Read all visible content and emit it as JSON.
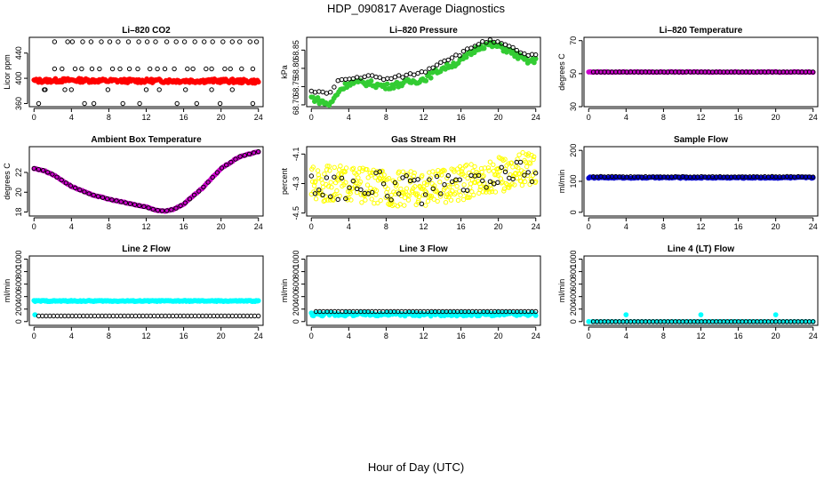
{
  "page": {
    "title": "HDP_090817  Average Diagnostics",
    "xlabel": "Hour of Day (UTC)"
  },
  "chart_data": [
    {
      "type": "scatter",
      "title": "Li–820 CO2",
      "ylabel": "Licor ppm",
      "xlim": [
        -0.5,
        24.5
      ],
      "ylim": [
        355,
        465
      ],
      "xticks": [
        0,
        4,
        8,
        12,
        16,
        20,
        24
      ],
      "yticks": [
        360,
        400,
        440
      ],
      "series": [
        {
          "color": "#ff0000",
          "filled": true,
          "density": 200,
          "x": [
            0,
            4,
            8,
            12,
            16,
            20,
            24
          ],
          "y": [
            396,
            397,
            396,
            396,
            396,
            396,
            395
          ],
          "jitter": 3
        },
        {
          "color": "#000000",
          "filled": false,
          "x": [
            0.5,
            1.2,
            2.2,
            3.6,
            4.1,
            5.2,
            6.1,
            7.2,
            8.1,
            9.0,
            10.1,
            11.2,
            12.1,
            13.0,
            14.2,
            15.2,
            16.1,
            17.2,
            18.2,
            19.1,
            20.2,
            21.2,
            22.0,
            23.1,
            23.8,
            2.2,
            3.0,
            4.4,
            5.1,
            6.2,
            7.0,
            8.4,
            9.2,
            10.2,
            11.1,
            12.4,
            13.2,
            14.0,
            15.0,
            16.4,
            17.0,
            18.4,
            19.0,
            20.4,
            21.0,
            22.2,
            23.4,
            1.1,
            3.3,
            4.0,
            5.4,
            6.4,
            7.9,
            9.5,
            11.3,
            12.0,
            13.4,
            15.3,
            16.2,
            17.4,
            19.0,
            19.9,
            21.2,
            23.4
          ],
          "y": [
            360,
            382,
            458,
            458,
            458,
            458,
            458,
            458,
            458,
            458,
            458,
            458,
            458,
            458,
            458,
            458,
            458,
            458,
            458,
            458,
            458,
            458,
            458,
            458,
            458,
            415,
            415,
            415,
            415,
            415,
            415,
            415,
            415,
            415,
            415,
            415,
            415,
            415,
            415,
            415,
            415,
            415,
            415,
            415,
            415,
            415,
            415,
            382,
            382,
            382,
            360,
            360,
            382,
            360,
            360,
            382,
            382,
            360,
            382,
            360,
            382,
            360,
            382,
            360
          ]
        }
      ]
    },
    {
      "type": "scatter",
      "title": "Li–820 Pressure",
      "ylabel": "kPa",
      "xlim": [
        -0.5,
        24.5
      ],
      "ylim": [
        68.695,
        68.885
      ],
      "xticks": [
        0,
        4,
        8,
        12,
        16,
        20,
        24
      ],
      "yticks": [
        68.7,
        68.75,
        68.8,
        68.85
      ],
      "series": [
        {
          "color": "#33cc33",
          "filled": true,
          "density": 140,
          "x": [
            0,
            1,
            2,
            3,
            4,
            6,
            8,
            10,
            12,
            14,
            16,
            18,
            19,
            20,
            21,
            22,
            23,
            24
          ],
          "y": [
            68.72,
            68.71,
            68.7,
            68.74,
            68.76,
            68.76,
            68.75,
            68.76,
            68.77,
            68.8,
            68.82,
            68.86,
            68.865,
            68.86,
            68.85,
            68.835,
            68.82,
            68.82
          ],
          "jitter": 0.008
        },
        {
          "color": "#000000",
          "filled": false,
          "density": 60,
          "x": [
            0,
            1,
            2,
            3,
            4,
            6,
            8,
            10,
            12,
            14,
            16,
            18,
            19,
            20,
            21,
            22,
            23,
            24
          ],
          "y": [
            68.74,
            68.735,
            68.73,
            68.77,
            68.77,
            68.78,
            68.77,
            68.78,
            68.79,
            68.82,
            68.84,
            68.87,
            68.875,
            68.87,
            68.86,
            68.85,
            68.835,
            68.835
          ],
          "jitter": 0.004
        }
      ]
    },
    {
      "type": "scatter",
      "title": "Li–820 Temperature",
      "ylabel": "degrees C",
      "xlim": [
        -0.5,
        24.5
      ],
      "ylim": [
        30,
        72
      ],
      "xticks": [
        0,
        4,
        8,
        12,
        16,
        20,
        24
      ],
      "yticks": [
        30,
        50,
        70
      ],
      "series": [
        {
          "color": "#cc00cc",
          "filled": true,
          "density": 140,
          "x": [
            0,
            24
          ],
          "y": [
            51,
            51
          ],
          "jitter": 0.2
        },
        {
          "color": "#000000",
          "filled": false,
          "density": 60,
          "x": [
            0.5,
            24
          ],
          "y": [
            51,
            51
          ],
          "jitter": 0
        }
      ]
    },
    {
      "type": "scatter",
      "title": "Ambient Box Temperature",
      "ylabel": "degrees C",
      "xlim": [
        -0.5,
        24.5
      ],
      "ylim": [
        17.6,
        24.6
      ],
      "xticks": [
        0,
        4,
        8,
        12,
        16,
        20,
        24
      ],
      "yticks": [
        18,
        20,
        22
      ],
      "series": [
        {
          "color": "#cc00cc",
          "filled": true,
          "density": 140,
          "x": [
            0,
            1,
            2,
            3,
            4,
            6,
            8,
            10,
            12,
            13,
            14,
            15,
            16,
            18,
            20,
            22,
            24
          ],
          "y": [
            22.4,
            22.2,
            21.8,
            21.2,
            20.6,
            19.8,
            19.3,
            18.9,
            18.5,
            18.2,
            18.1,
            18.3,
            18.8,
            20.4,
            22.4,
            23.6,
            24.1
          ],
          "jitter": 0.04
        },
        {
          "color": "#000000",
          "filled": false,
          "density": 50,
          "x": [
            0,
            1,
            2,
            3,
            4,
            6,
            8,
            10,
            12,
            13,
            14,
            15,
            16,
            18,
            20,
            22,
            24
          ],
          "y": [
            22.4,
            22.2,
            21.8,
            21.2,
            20.6,
            19.8,
            19.3,
            18.9,
            18.5,
            18.2,
            18.1,
            18.3,
            18.8,
            20.4,
            22.4,
            23.6,
            24.1
          ],
          "jitter": 0
        }
      ]
    },
    {
      "type": "scatter",
      "title": "Gas Stream RH",
      "ylabel": "percent",
      "xlim": [
        -0.5,
        24.5
      ],
      "ylim": [
        -4.52,
        -4.05
      ],
      "xticks": [
        0,
        4,
        8,
        12,
        16,
        20,
        24
      ],
      "yticks": [
        -4.5,
        -4.3,
        -4.1
      ],
      "series": [
        {
          "color": "#ffff00",
          "filled": false,
          "density": 380,
          "x": [
            0,
            4,
            8,
            12,
            16,
            20,
            24
          ],
          "y": [
            -4.3,
            -4.3,
            -4.33,
            -4.34,
            -4.3,
            -4.24,
            -4.18
          ],
          "jitter": 0.12
        },
        {
          "color": "#000000",
          "filled": false,
          "density": 60,
          "x": [
            0,
            4,
            8,
            12,
            16,
            20,
            24
          ],
          "y": [
            -4.32,
            -4.31,
            -4.31,
            -4.36,
            -4.33,
            -4.27,
            -4.2
          ],
          "jitter": 0.1
        }
      ]
    },
    {
      "type": "scatter",
      "title": "Sample Flow",
      "ylabel": "ml/min",
      "xlim": [
        -0.5,
        24.5
      ],
      "ylim": [
        -12,
        212
      ],
      "xticks": [
        0,
        4,
        8,
        12,
        16,
        20,
        24
      ],
      "yticks": [
        0,
        100,
        200
      ],
      "series": [
        {
          "color": "#0000cc",
          "filled": true,
          "density": 160,
          "x": [
            0,
            24
          ],
          "y": [
            112,
            112
          ],
          "jitter": 2
        },
        {
          "color": "#000000",
          "filled": false,
          "density": 60,
          "x": [
            0.5,
            24
          ],
          "y": [
            115,
            115
          ],
          "jitter": 1
        }
      ]
    },
    {
      "type": "scatter",
      "title": "Line 2 Flow",
      "ylabel": "ml/min",
      "xlim": [
        -0.5,
        24.5
      ],
      "ylim": [
        -60,
        1050
      ],
      "xticks": [
        0,
        4,
        8,
        12,
        16,
        20,
        24
      ],
      "yticks": [
        0,
        200,
        400,
        600,
        800,
        1000
      ],
      "series": [
        {
          "color": "#00ffff",
          "filled": true,
          "density": 200,
          "x": [
            0,
            24
          ],
          "y": [
            330,
            330
          ],
          "jitter": 8
        },
        {
          "color": "#00ffff",
          "filled": true,
          "x": [
            0.1
          ],
          "y": [
            110
          ]
        },
        {
          "color": "#000000",
          "filled": false,
          "density": 60,
          "x": [
            0.5,
            24
          ],
          "y": [
            90,
            90
          ],
          "jitter": 0
        }
      ]
    },
    {
      "type": "scatter",
      "title": "Line 3 Flow",
      "ylabel": "ml/min",
      "xlim": [
        -0.5,
        24.5
      ],
      "ylim": [
        -60,
        1050
      ],
      "xticks": [
        0,
        4,
        8,
        12,
        16,
        20,
        24
      ],
      "yticks": [
        0,
        200,
        400,
        600,
        800,
        1000
      ],
      "series": [
        {
          "color": "#00ffff",
          "filled": true,
          "density": 200,
          "x": [
            0,
            24
          ],
          "y": [
            120,
            120
          ],
          "jitter": 30
        },
        {
          "color": "#000000",
          "filled": false,
          "density": 60,
          "x": [
            0.5,
            24
          ],
          "y": [
            160,
            160
          ],
          "jitter": 0
        }
      ]
    },
    {
      "type": "scatter",
      "title": "Line 4 (LT) Flow",
      "ylabel": "ml/min",
      "xlim": [
        -0.5,
        24.5
      ],
      "ylim": [
        -60,
        1050
      ],
      "xticks": [
        0,
        4,
        8,
        12,
        16,
        20,
        24
      ],
      "yticks": [
        0,
        200,
        400,
        600,
        800,
        1000
      ],
      "series": [
        {
          "color": "#00ffff",
          "filled": true,
          "density": 60,
          "x": [
            0,
            24
          ],
          "y": [
            0,
            0
          ],
          "jitter": 0
        },
        {
          "color": "#00ffff",
          "filled": true,
          "x": [
            4.0,
            12.0,
            20.0
          ],
          "y": [
            110,
            110,
            110
          ]
        },
        {
          "color": "#000000",
          "filled": false,
          "density": 60,
          "x": [
            0.5,
            24
          ],
          "y": [
            0,
            0
          ],
          "jitter": 0
        }
      ]
    }
  ]
}
